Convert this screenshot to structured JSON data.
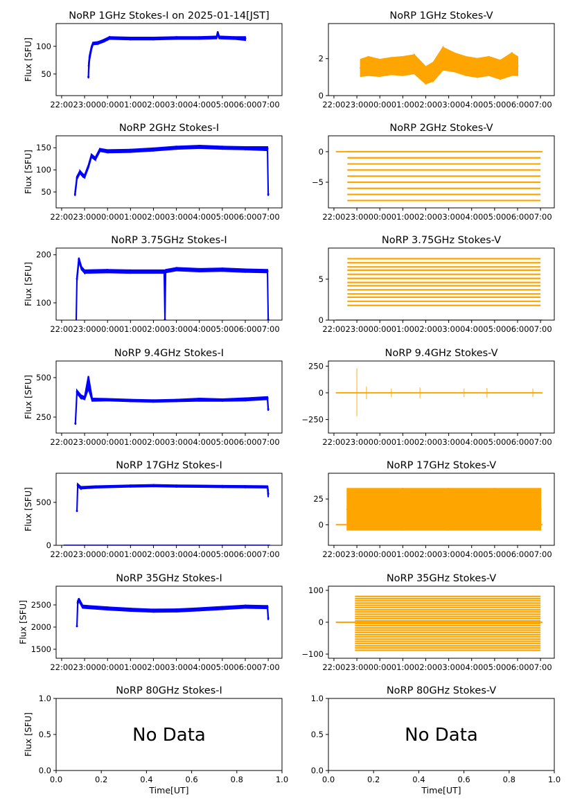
{
  "time_ticks": [
    "22:00",
    "23:00",
    "00:00",
    "01:00",
    "02:00",
    "03:00",
    "04:00",
    "05:00",
    "06:00",
    "07:00"
  ],
  "colors": {
    "stokes_i": "#0000ff",
    "stokes_v": "#ffa500"
  },
  "chart_data": [
    {
      "type": "scatter",
      "title": "NoRP 1GHz Stokes-I on 2025-01-14[JST]",
      "ylabel": "Flux [SFU]",
      "xlabel": "",
      "ylim": [
        11,
        141
      ],
      "yticks": [
        50,
        100
      ],
      "color": "#0000ff",
      "points": [
        [
          "23:10",
          45,
          3
        ],
        [
          "23:11",
          65,
          6
        ],
        [
          "23:13",
          80,
          4
        ],
        [
          "23:18",
          97,
          3
        ],
        [
          "23:22",
          105,
          2
        ],
        [
          "23:35",
          106,
          2
        ],
        [
          "23:50",
          110,
          2
        ],
        [
          "00:05",
          115,
          2
        ],
        [
          "01:00",
          114,
          2
        ],
        [
          "02:00",
          114,
          2
        ],
        [
          "03:00",
          115,
          2
        ],
        [
          "04:00",
          115,
          2
        ],
        [
          "04:45",
          116,
          2
        ],
        [
          "04:48",
          124,
          3
        ],
        [
          "04:52",
          116,
          2
        ],
        [
          "05:30",
          115,
          2
        ],
        [
          "06:00",
          114,
          3
        ]
      ]
    },
    {
      "type": "scatter",
      "title": "NoRP 1GHz Stokes-V",
      "ylabel": "",
      "xlabel": "",
      "ylim": [
        0,
        3.9
      ],
      "yticks": [
        0,
        2
      ],
      "color": "#ffa500",
      "points": [
        [
          "23:10",
          1.5,
          0.45
        ],
        [
          "23:30",
          1.6,
          0.5
        ],
        [
          "00:00",
          1.5,
          0.45
        ],
        [
          "00:30",
          1.6,
          0.45
        ],
        [
          "01:00",
          1.6,
          0.5
        ],
        [
          "01:30",
          1.7,
          0.5
        ],
        [
          "02:00",
          1.1,
          0.45
        ],
        [
          "02:20",
          1.3,
          0.5
        ],
        [
          "02:45",
          2.0,
          0.6
        ],
        [
          "03:15",
          1.8,
          0.5
        ],
        [
          "03:45",
          1.6,
          0.5
        ],
        [
          "04:15",
          1.5,
          0.5
        ],
        [
          "04:45",
          1.6,
          0.5
        ],
        [
          "05:15",
          1.4,
          0.5
        ],
        [
          "05:45",
          1.7,
          0.6
        ],
        [
          "06:00",
          1.6,
          0.5
        ]
      ]
    },
    {
      "type": "scatter",
      "title": "NoRP 2GHz Stokes-I",
      "ylabel": "Flux [SFU]",
      "xlabel": "",
      "ylim": [
        14,
        177
      ],
      "yticks": [
        50,
        100,
        150
      ],
      "color": "#0000ff",
      "points": [
        [
          "22:35",
          45,
          4
        ],
        [
          "22:40",
          82,
          3
        ],
        [
          "22:48",
          95,
          3
        ],
        [
          "22:55",
          88,
          3
        ],
        [
          "23:00",
          85,
          3
        ],
        [
          "23:10",
          108,
          3
        ],
        [
          "23:18",
          132,
          3
        ],
        [
          "23:28",
          125,
          3
        ],
        [
          "23:40",
          145,
          3
        ],
        [
          "00:00",
          142,
          3
        ],
        [
          "01:00",
          143,
          3
        ],
        [
          "02:00",
          146,
          3
        ],
        [
          "03:00",
          150,
          3
        ],
        [
          "04:00",
          152,
          3
        ],
        [
          "05:00",
          150,
          3
        ],
        [
          "06:00",
          149,
          3
        ],
        [
          "06:58",
          148,
          4
        ],
        [
          "07:00",
          45,
          4
        ]
      ]
    },
    {
      "type": "scatter",
      "title": "NoRP 2GHz Stokes-V",
      "ylabel": "",
      "xlabel": "",
      "ylim": [
        -9.2,
        2.6
      ],
      "yticks": [
        -5,
        0
      ],
      "color": "#ffa500",
      "baseline": {
        "value": 0,
        "from": "22:05",
        "to": "07:05"
      },
      "levels": {
        "from": "22:35",
        "to": "07:00",
        "values": [
          0,
          -1,
          -2,
          -3,
          -4,
          -5,
          -6,
          -7,
          -8
        ]
      }
    },
    {
      "type": "scatter",
      "title": "NoRP 3.75GHz Stokes-I",
      "ylabel": "Flux [SFU]",
      "xlabel": "",
      "ylim": [
        64,
        214
      ],
      "yticks": [
        100,
        200
      ],
      "color": "#0000ff",
      "points": [
        [
          "22:38",
          62,
          3
        ],
        [
          "22:40",
          150,
          4
        ],
        [
          "22:45",
          190,
          4
        ],
        [
          "22:52",
          172,
          3
        ],
        [
          "23:00",
          165,
          3
        ],
        [
          "00:00",
          166,
          3
        ],
        [
          "01:00",
          165,
          3
        ],
        [
          "02:28",
          165,
          3
        ],
        [
          "02:30",
          65,
          3
        ],
        [
          "02:32",
          166,
          3
        ],
        [
          "03:00",
          170,
          3
        ],
        [
          "04:00",
          168,
          3
        ],
        [
          "05:00",
          169,
          3
        ],
        [
          "06:00",
          167,
          3
        ],
        [
          "06:58",
          166,
          3
        ],
        [
          "07:00",
          65,
          3
        ]
      ]
    },
    {
      "type": "scatter",
      "title": "NoRP 3.75GHz Stokes-V",
      "ylabel": "",
      "xlabel": "",
      "ylim": [
        0,
        8.8
      ],
      "yticks": [
        0,
        5
      ],
      "color": "#ffa500",
      "baseline": {
        "value": 0,
        "from": "22:05",
        "to": "07:05"
      },
      "levels": {
        "from": "22:35",
        "to": "07:00",
        "values": [
          1.8,
          2.3,
          2.8,
          3.2,
          3.7,
          4.2,
          4.6,
          5.1,
          5.6,
          6.1,
          6.5,
          7.0,
          7.5
        ]
      }
    },
    {
      "type": "scatter",
      "title": "NoRP 9.4GHz Stokes-I",
      "ylabel": "Flux [SFU]",
      "xlabel": "",
      "ylim": [
        149,
        605
      ],
      "yticks": [
        250,
        500
      ],
      "color": "#0000ff",
      "points": [
        [
          "22:36",
          210,
          8
        ],
        [
          "22:40",
          410,
          10
        ],
        [
          "22:50",
          380,
          10
        ],
        [
          "23:00",
          370,
          8
        ],
        [
          "23:10",
          470,
          40
        ],
        [
          "23:20",
          360,
          8
        ],
        [
          "00:00",
          360,
          6
        ],
        [
          "01:00",
          355,
          6
        ],
        [
          "02:00",
          352,
          6
        ],
        [
          "03:00",
          355,
          6
        ],
        [
          "04:00",
          360,
          8
        ],
        [
          "05:00",
          358,
          6
        ],
        [
          "06:00",
          362,
          8
        ],
        [
          "06:58",
          370,
          8
        ],
        [
          "07:00",
          300,
          10
        ]
      ]
    },
    {
      "type": "scatter",
      "title": "NoRP 9.4GHz Stokes-V",
      "ylabel": "",
      "xlabel": "",
      "ylim": [
        -377,
        298
      ],
      "yticks": [
        -250,
        0,
        250
      ],
      "color": "#ffa500",
      "baseline": {
        "value": 0,
        "from": "22:05",
        "to": "07:05"
      },
      "spikes": [
        [
          "23:00",
          230,
          -220
        ],
        [
          "23:25",
          60,
          -60
        ],
        [
          "00:30",
          40,
          -40
        ],
        [
          "01:45",
          50,
          -50
        ],
        [
          "03:40",
          40,
          -40
        ],
        [
          "04:40",
          45,
          -45
        ],
        [
          "06:40",
          40,
          -40
        ]
      ]
    },
    {
      "type": "scatter",
      "title": "NoRP 17GHz Stokes-I",
      "ylabel": "Flux [SFU]",
      "xlabel": "",
      "ylim": [
        0,
        839
      ],
      "yticks": [
        0,
        500
      ],
      "color": "#0000ff",
      "baseline": {
        "value": 0,
        "from": "22:05",
        "to": "07:05"
      },
      "points": [
        [
          "22:40",
          400,
          10
        ],
        [
          "22:42",
          700,
          15
        ],
        [
          "22:50",
          670,
          12
        ],
        [
          "23:30",
          680,
          10
        ],
        [
          "01:00",
          690,
          10
        ],
        [
          "02:00",
          695,
          10
        ],
        [
          "03:00",
          690,
          10
        ],
        [
          "04:00",
          688,
          10
        ],
        [
          "05:00",
          685,
          10
        ],
        [
          "06:00",
          683,
          10
        ],
        [
          "06:58",
          680,
          10
        ],
        [
          "07:00",
          600,
          40
        ]
      ]
    },
    {
      "type": "scatter",
      "title": "NoRP 17GHz Stokes-V",
      "ylabel": "",
      "xlabel": "",
      "ylim": [
        -20,
        50
      ],
      "yticks": [
        0,
        25
      ],
      "color": "#ffa500",
      "baseline": {
        "value": 0,
        "from": "22:05",
        "to": "07:05"
      },
      "points": [
        [
          "22:35",
          15,
          20
        ],
        [
          "01:00",
          15,
          20
        ],
        [
          "03:00",
          15,
          20
        ],
        [
          "05:00",
          15,
          20
        ],
        [
          "07:00",
          15,
          20
        ]
      ]
    },
    {
      "type": "scatter",
      "title": "NoRP 35GHz Stokes-I",
      "ylabel": "Flux [SFU]",
      "xlabel": "",
      "ylim": [
        1297,
        2922
      ],
      "yticks": [
        1500,
        2000,
        2500
      ],
      "color": "#0000ff",
      "points": [
        [
          "22:40",
          2020,
          20
        ],
        [
          "22:42",
          2550,
          40
        ],
        [
          "22:45",
          2620,
          30
        ],
        [
          "22:55",
          2460,
          30
        ],
        [
          "00:00",
          2420,
          30
        ],
        [
          "01:00",
          2390,
          30
        ],
        [
          "02:00",
          2370,
          30
        ],
        [
          "03:00",
          2375,
          30
        ],
        [
          "04:00",
          2400,
          30
        ],
        [
          "05:00",
          2430,
          30
        ],
        [
          "06:00",
          2460,
          30
        ],
        [
          "06:58",
          2450,
          30
        ],
        [
          "07:00",
          2200,
          40
        ]
      ]
    },
    {
      "type": "scatter",
      "title": "NoRP 35GHz Stokes-V",
      "ylabel": "",
      "xlabel": "",
      "ylim": [
        -113,
        113
      ],
      "yticks": [
        -100,
        0,
        100
      ],
      "color": "#ffa500",
      "baseline": {
        "value": 0,
        "from": "22:05",
        "to": "07:05"
      },
      "levels": {
        "from": "22:55",
        "to": "07:00",
        "values": [
          -88,
          -81,
          -74,
          -67,
          -60,
          -53,
          -46,
          -39,
          -32,
          -25,
          -18,
          -11,
          -4,
          4,
          11,
          18,
          25,
          32,
          39,
          46,
          53,
          60,
          67,
          74,
          81
        ]
      }
    },
    {
      "type": "empty",
      "title": "NoRP 80GHz Stokes-I",
      "ylabel": "Flux [SFU]",
      "xlabel": "Time[UT]",
      "xlim": [
        0,
        1
      ],
      "ylim": [
        0,
        1
      ],
      "xticks": [
        0,
        0.2,
        0.4,
        0.6,
        0.8,
        1.0
      ],
      "yticks": [
        0,
        0.5,
        1.0
      ],
      "annotation": "No Data"
    },
    {
      "type": "empty",
      "title": "NoRP 80GHz Stokes-V",
      "ylabel": "",
      "xlabel": "Time[UT]",
      "xlim": [
        0,
        1
      ],
      "ylim": [
        0,
        1
      ],
      "xticks": [
        0,
        0.2,
        0.4,
        0.6,
        0.8,
        1.0
      ],
      "yticks": [
        0,
        0.5,
        1.0
      ],
      "annotation": "No Data"
    }
  ]
}
